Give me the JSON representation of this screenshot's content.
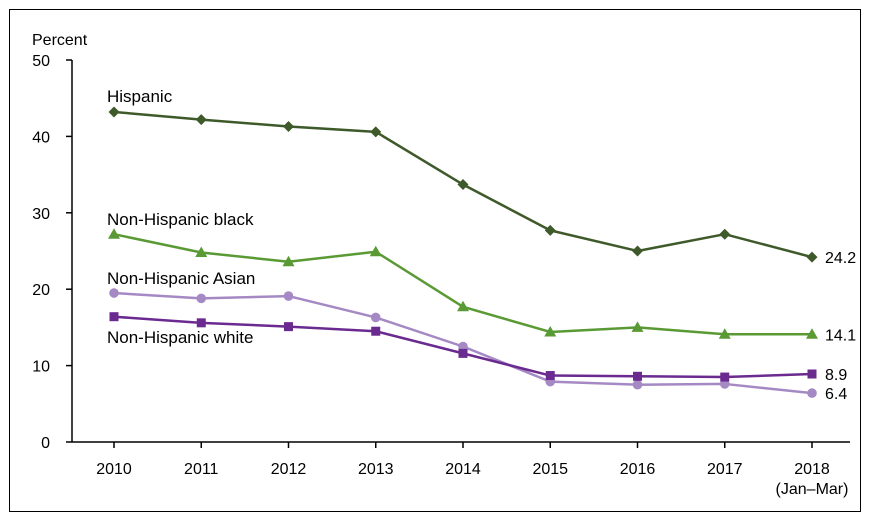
{
  "chart_data": {
    "type": "line",
    "ylabel": "Percent",
    "xlabel": "",
    "ylim": [
      0,
      50
    ],
    "yticks": [
      0,
      10,
      20,
      30,
      40,
      50
    ],
    "categories": [
      "2010",
      "2011",
      "2012",
      "2013",
      "2014",
      "2015",
      "2016",
      "2017",
      "2018"
    ],
    "category_sublabels": [
      "",
      "",
      "",
      "",
      "",
      "",
      "",
      "",
      "(Jan–Mar)"
    ],
    "grid": false,
    "series": [
      {
        "name": "Hispanic",
        "values": [
          43.2,
          42.2,
          41.3,
          40.6,
          33.7,
          27.7,
          25.0,
          27.2,
          24.2
        ],
        "end_label": "24.2",
        "marker": "diamond",
        "color": "#3f5a2a"
      },
      {
        "name": "Non-Hispanic black",
        "values": [
          27.2,
          24.8,
          23.6,
          24.9,
          17.7,
          14.4,
          15.0,
          14.1,
          14.1
        ],
        "end_label": "14.1",
        "marker": "triangle",
        "color": "#5a9a35"
      },
      {
        "name": "Non-Hispanic Asian",
        "values": [
          19.5,
          18.8,
          19.1,
          16.3,
          12.5,
          7.9,
          7.5,
          7.6,
          6.4
        ],
        "end_label": "6.4",
        "marker": "circle",
        "color": "#a589c4"
      },
      {
        "name": "Non-Hispanic white",
        "values": [
          16.4,
          15.6,
          15.1,
          14.5,
          11.6,
          8.7,
          8.6,
          8.5,
          8.9
        ],
        "end_label": "8.9",
        "marker": "square",
        "color": "#6a2a8f"
      }
    ]
  }
}
